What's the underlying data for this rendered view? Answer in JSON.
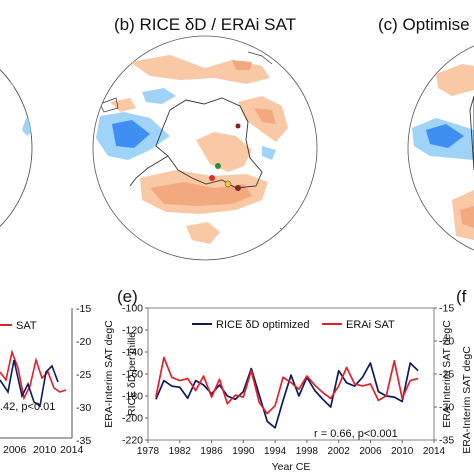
{
  "panels": {
    "b": {
      "title": "(b) RICE δD / ERAi SAT"
    },
    "c": {
      "title": "(c) Optimise"
    },
    "e": {
      "letter": "(e)"
    },
    "f": {
      "letter": "(f"
    }
  },
  "left_fragment": {
    "legend": "SAT",
    "stat": ".42, p<0.01",
    "xticks": [
      "2006",
      "2010",
      "2014"
    ],
    "right_ticks": [
      "-15",
      "-20",
      "-25",
      "-30",
      "-35"
    ],
    "right_label": "ERA-Interim SAT degC"
  },
  "right_fragment": {
    "ylabel": "ERA-Interim SAT degC"
  },
  "colors": {
    "rice": "#0d1b5a",
    "erai": "#e0202a",
    "warm_light": "#f9c9a6",
    "warm_mid": "#f3a97f",
    "cool_light": "#9fd3f7",
    "cool_mid": "#3f8ff2",
    "ice": "#ffffff",
    "ocean": "#ffffff"
  },
  "chart_data": {
    "type": "line",
    "title": "",
    "xlabel": "Year CE",
    "ylabel": "RICE δD per mille",
    "y2label": "ERA-Interim SAT degC",
    "xlim": [
      1978,
      2014
    ],
    "ylim": [
      -220,
      -100
    ],
    "y2lim": [
      -35,
      -15
    ],
    "xticks": [
      "1978",
      "1982",
      "1986",
      "1990",
      "1994",
      "1998",
      "2002",
      "2006",
      "2010",
      "2014"
    ],
    "yticks": [
      "-100",
      "-120",
      "-140",
      "-160",
      "-180",
      "-200",
      "-220"
    ],
    "y2ticks": [
      "-15",
      "-20",
      "-25",
      "-30",
      "-35"
    ],
    "annotation": "r = 0.66, p<0.001",
    "legend_position": "top-left",
    "x": [
      1979,
      1980,
      1981,
      1982,
      1983,
      1984,
      1985,
      1986,
      1987,
      1988,
      1989,
      1990,
      1991,
      1992,
      1993,
      1994,
      1995,
      1996,
      1997,
      1998,
      1999,
      2000,
      2001,
      2002,
      2003,
      2004,
      2005,
      2006,
      2007,
      2008,
      2009,
      2010,
      2011,
      2012
    ],
    "series": [
      {
        "name": "RICE δD optimized",
        "axis": "left",
        "values": [
          -183,
          -166,
          -171,
          -172,
          -182,
          -166,
          -170,
          -178,
          -170,
          -180,
          -183,
          -176,
          -155,
          -179,
          -203,
          -209,
          -184,
          -161,
          -180,
          -163,
          -175,
          -183,
          -190,
          -157,
          -168,
          -171,
          -163,
          -150,
          -176,
          -180,
          -181,
          -185,
          -150,
          -157
        ]
      },
      {
        "name": "ERAi SAT",
        "axis": "right",
        "values": [
          -28.5,
          -22.5,
          -25.5,
          -26.0,
          -25.7,
          -27.5,
          -25.3,
          -28.5,
          -25.8,
          -29.5,
          -28.2,
          -28.5,
          -24.5,
          -29.3,
          -31.0,
          -29.8,
          -25.5,
          -26.3,
          -27.3,
          -25.3,
          -26.7,
          -27.8,
          -28.7,
          -26.8,
          -24.0,
          -26.5,
          -26.8,
          -26.5,
          -29.0,
          -28.3,
          -23.0,
          -28.7,
          -26.0,
          -25.7
        ]
      }
    ]
  }
}
